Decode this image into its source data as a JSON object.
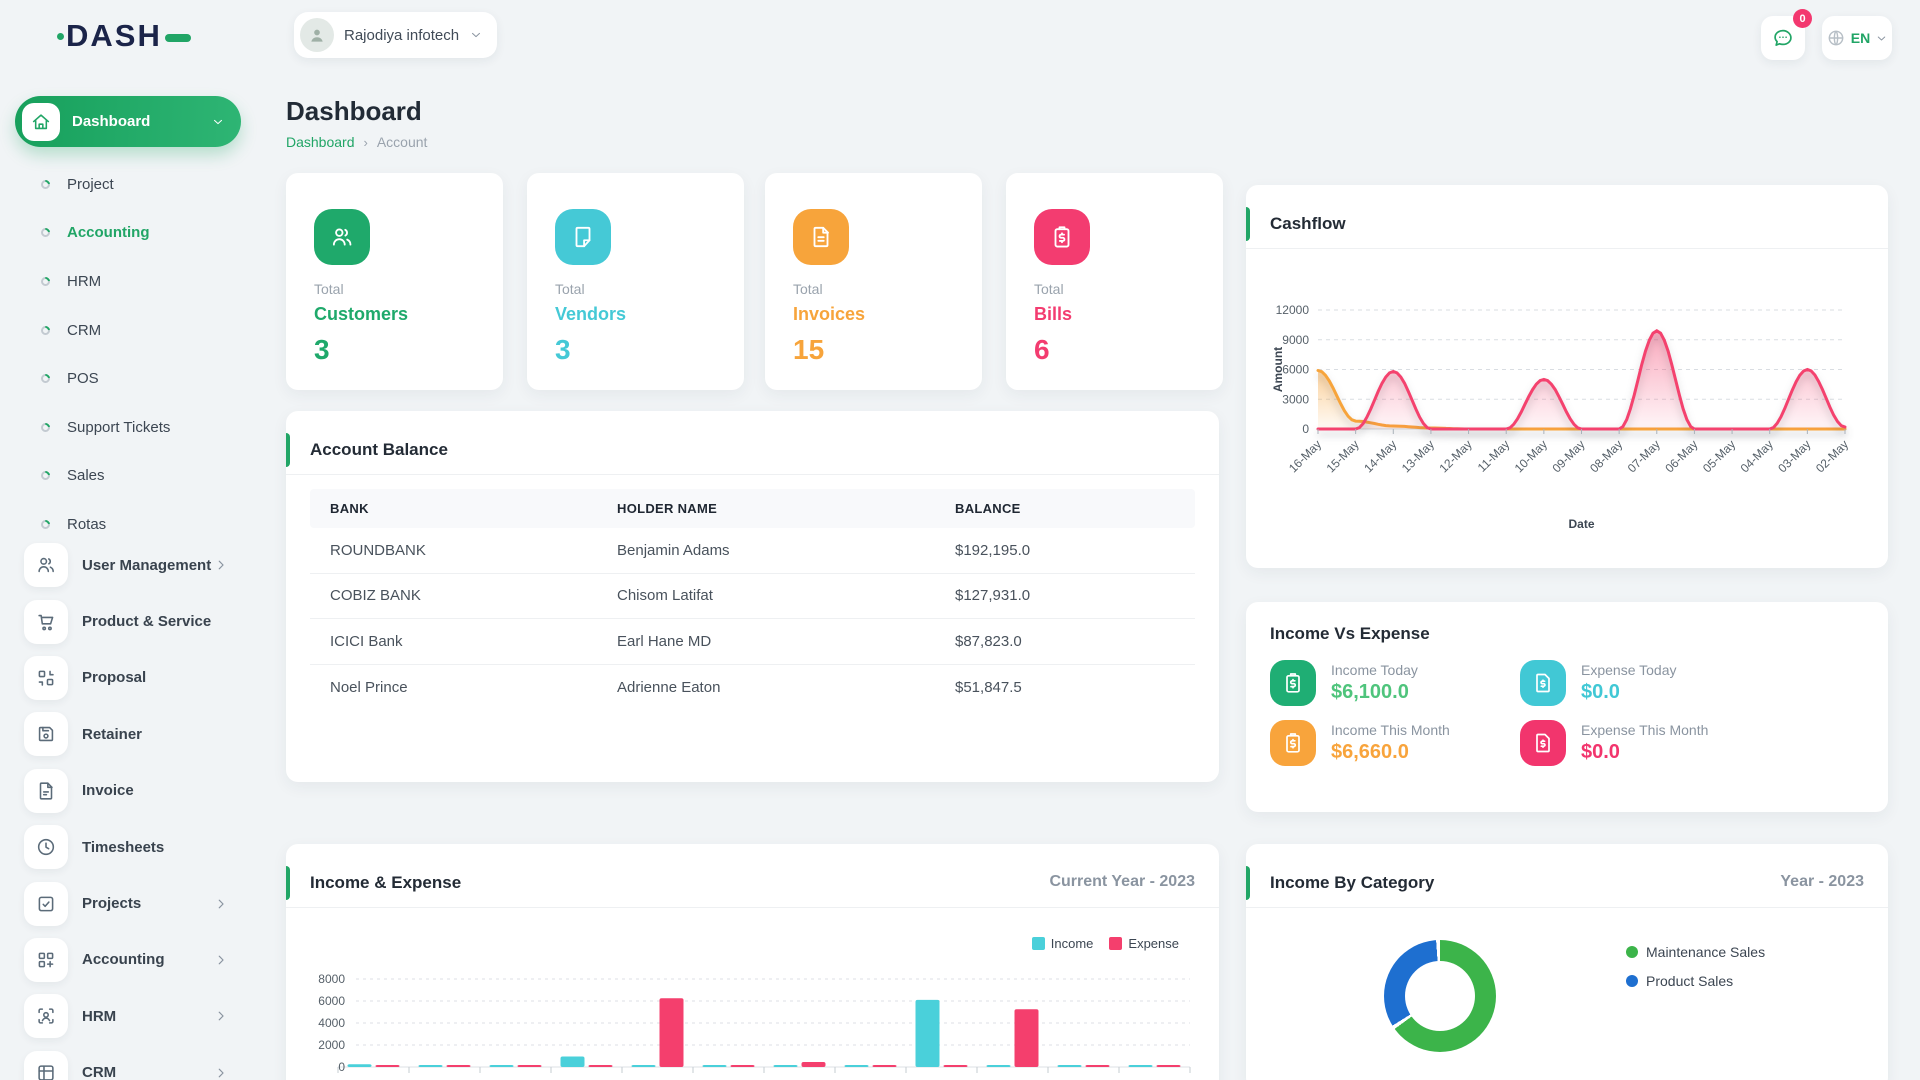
{
  "colors": {
    "primary": "#21a566",
    "navy": "#1b2449",
    "teal": "#45c9d6",
    "orange": "#f7a43b",
    "pink": "#f3386f",
    "blue": "#1e6fd0",
    "bar_income": "#4ad0da",
    "bar_expense": "#f43f6d",
    "line_income": "#f7a43b",
    "line_expense": "#f4426e",
    "donut_green": "#3cb44a"
  },
  "topbar": {
    "logo": "DASH",
    "company": "Rajodiya infotech",
    "chat_badge": "0",
    "language": "EN"
  },
  "sidebar": {
    "active": {
      "label": "Dashboard",
      "icon": "home"
    },
    "submenu": [
      {
        "label": "Project",
        "active": false
      },
      {
        "label": "Accounting",
        "active": true
      },
      {
        "label": "HRM",
        "active": false
      },
      {
        "label": "CRM",
        "active": false
      },
      {
        "label": "POS",
        "active": false
      },
      {
        "label": "Support Tickets",
        "active": false
      },
      {
        "label": "Sales",
        "active": false
      },
      {
        "label": "Rotas",
        "active": false
      }
    ],
    "items": [
      {
        "label": "User Management",
        "icon": "users",
        "chevron": true
      },
      {
        "label": "Product & Service",
        "icon": "cart",
        "chevron": false
      },
      {
        "label": "Proposal",
        "icon": "qr",
        "chevron": false
      },
      {
        "label": "Retainer",
        "icon": "floppy",
        "chevron": false
      },
      {
        "label": "Invoice",
        "icon": "file",
        "chevron": false
      },
      {
        "label": "Timesheets",
        "icon": "clock",
        "chevron": false
      },
      {
        "label": "Projects",
        "icon": "checksq",
        "chevron": true
      },
      {
        "label": "Accounting",
        "icon": "gridplus",
        "chevron": true
      },
      {
        "label": "HRM",
        "icon": "userscan",
        "chevron": true
      },
      {
        "label": "CRM",
        "icon": "layout",
        "chevron": true
      }
    ]
  },
  "header": {
    "title": "Dashboard",
    "breadcrumb_link": "Dashboard",
    "breadcrumb_current": "Account"
  },
  "stats": [
    {
      "top": "Total",
      "label": "Customers",
      "value": "3",
      "color": "#1fa96b",
      "icon": "users"
    },
    {
      "top": "Total",
      "label": "Vendors",
      "value": "3",
      "color": "#45c9d6",
      "icon": "note"
    },
    {
      "top": "Total",
      "label": "Invoices",
      "value": "15",
      "color": "#f7a43b",
      "icon": "filetext"
    },
    {
      "top": "Total",
      "label": "Bills",
      "value": "6",
      "color": "#f33c70",
      "icon": "clipdollar"
    }
  ],
  "account_balance": {
    "title": "Account Balance",
    "columns": [
      "BANK",
      "HOLDER NAME",
      "BALANCE"
    ],
    "rows": [
      [
        "ROUNDBANK",
        "Benjamin Adams",
        "$192,195.0"
      ],
      [
        "COBIZ BANK",
        "Chisom Latifat",
        "$127,931.0"
      ],
      [
        "ICICI Bank",
        "Earl Hane MD",
        "$87,823.0"
      ],
      [
        "Noel Prince",
        "Adrienne Eaton",
        "$51,847.5"
      ]
    ]
  },
  "income_vs_expense": {
    "title": "Income Vs Expense",
    "items": [
      {
        "label": "Income Today",
        "value": "$6,100.0",
        "color": "#4fc47c",
        "icon_bg": "#1fae74",
        "icon": "clipdollar"
      },
      {
        "label": "Expense Today",
        "value": "$0.0",
        "color": "#41c8d5",
        "icon_bg": "#41c8d5",
        "icon": "filedollar"
      },
      {
        "label": "Income This Month",
        "value": "$6,660.0",
        "color": "#f8a43c",
        "icon_bg": "#f8a43c",
        "icon": "clipdollar"
      },
      {
        "label": "Expense This Month",
        "value": "$0.0",
        "color": "#f2356d",
        "icon_bg": "#f2356d",
        "icon": "filedollar"
      }
    ]
  },
  "chart_data": [
    {
      "id": "cashflow",
      "type": "area",
      "title": "Cashflow",
      "xlabel": "Date",
      "ylabel": "Amount",
      "ylim": [
        0,
        12000
      ],
      "yticks": [
        0,
        3000,
        6000,
        9000,
        12000
      ],
      "grid": "dashed",
      "x": [
        "16-May",
        "15-May",
        "14-May",
        "13-May",
        "12-May",
        "11-May",
        "10-May",
        "09-May",
        "08-May",
        "07-May",
        "06-May",
        "05-May",
        "04-May",
        "03-May",
        "02-May"
      ],
      "series": [
        {
          "name": "Income",
          "color": "#f7a43b",
          "values": [
            5900,
            800,
            300,
            100,
            0,
            0,
            0,
            0,
            0,
            0,
            0,
            0,
            0,
            0,
            0
          ]
        },
        {
          "name": "Expense",
          "color": "#f4426e",
          "values": [
            0,
            0,
            5800,
            0,
            0,
            0,
            5000,
            0,
            0,
            9900,
            0,
            0,
            0,
            6000,
            200
          ]
        }
      ]
    },
    {
      "id": "income-expense",
      "type": "bar",
      "title": "Income & Expense",
      "subtitle": "Current Year - 2023",
      "ylim": [
        0,
        8000
      ],
      "yticks": [
        0,
        2000,
        4000,
        6000,
        8000
      ],
      "grid": "dashed",
      "legend": "top-right",
      "groups": 12,
      "categories_cropped": true,
      "series": [
        {
          "name": "Income",
          "color": "#4ad0da",
          "values": [
            250,
            130,
            130,
            950,
            100,
            100,
            180,
            100,
            6100,
            100,
            100,
            100
          ]
        },
        {
          "name": "Expense",
          "color": "#f43f6d",
          "values": [
            150,
            130,
            130,
            130,
            6250,
            100,
            450,
            100,
            100,
            5250,
            100,
            100
          ]
        }
      ]
    },
    {
      "id": "income-by-category",
      "type": "donut",
      "title": "Income By Category",
      "subtitle": "Year - 2023",
      "slices": [
        {
          "label": "Maintenance Sales",
          "color": "#3cb44a",
          "pct": 66.5
        },
        {
          "label": "Product Sales",
          "color": "#1e6fd0",
          "pct": 33.5
        }
      ]
    }
  ]
}
